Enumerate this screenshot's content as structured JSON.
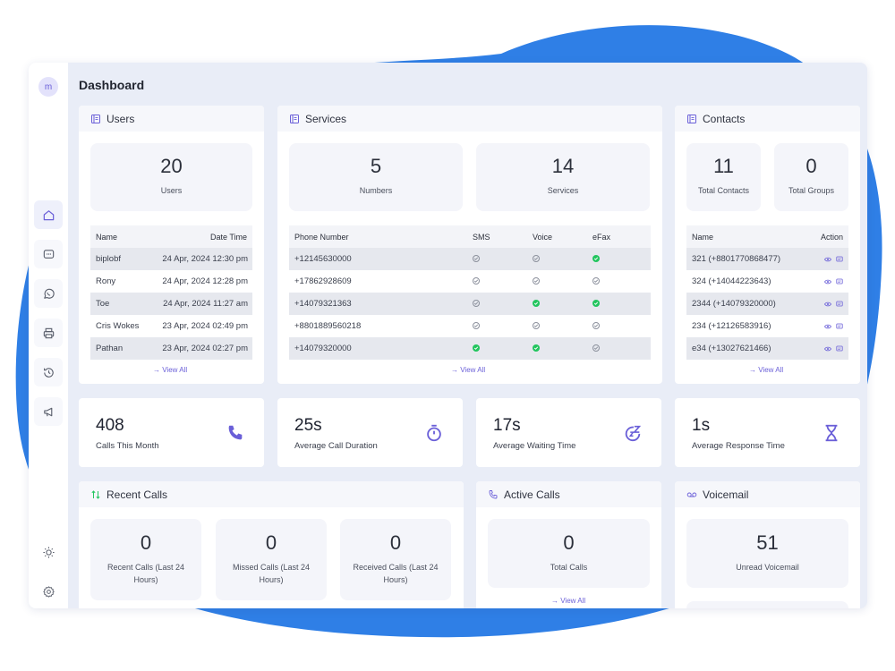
{
  "page_title": "Dashboard",
  "avatar_initial": "m",
  "accent_color": "#6a5fd8",
  "blob_color": "#2f7fe6",
  "sidebar": {
    "icons": [
      "home-icon",
      "chat-icon",
      "whatsapp-icon",
      "fax-printer-icon",
      "history-icon",
      "megaphone-icon"
    ],
    "bottom_icons": [
      "sun-icon",
      "settings-icon"
    ]
  },
  "users": {
    "title": "Users",
    "stat": {
      "value": "20",
      "label": "Users"
    },
    "columns": [
      "Name",
      "Date Time"
    ],
    "rows": [
      {
        "name": "biplobf",
        "date": "24 Apr, 2024 12:30 pm"
      },
      {
        "name": "Rony",
        "date": "24 Apr, 2024 12:28 pm"
      },
      {
        "name": "Toe",
        "date": "24 Apr, 2024 11:27 am"
      },
      {
        "name": "Cris Wokes",
        "date": "23 Apr, 2024 02:49 pm"
      },
      {
        "name": "Pathan",
        "date": "23 Apr, 2024 02:27 pm"
      }
    ],
    "view_all": "→ View All"
  },
  "services": {
    "title": "Services",
    "stats": [
      {
        "value": "5",
        "label": "Numbers"
      },
      {
        "value": "14",
        "label": "Services"
      }
    ],
    "columns": [
      "Phone Number",
      "SMS",
      "Voice",
      "eFax"
    ],
    "rows": [
      {
        "phone": "+12145630000",
        "sms": false,
        "voice": false,
        "efax": true
      },
      {
        "phone": "+17862928609",
        "sms": false,
        "voice": false,
        "efax": false
      },
      {
        "phone": "+14079321363",
        "sms": false,
        "voice": true,
        "efax": true
      },
      {
        "phone": "+8801889560218",
        "sms": false,
        "voice": false,
        "efax": false
      },
      {
        "phone": "+14079320000",
        "sms": true,
        "voice": true,
        "efax": false
      }
    ],
    "view_all": "→ View All"
  },
  "contacts": {
    "title": "Contacts",
    "stats": [
      {
        "value": "11",
        "label": "Total Contacts"
      },
      {
        "value": "0",
        "label": "Total Groups"
      }
    ],
    "columns": [
      "Name",
      "Action"
    ],
    "rows": [
      {
        "name": "321 (+8801770868477)"
      },
      {
        "name": "324 (+14044223643)"
      },
      {
        "name": "2344 (+14079320000)"
      },
      {
        "name": "234 (+12126583916)"
      },
      {
        "name": "e34 (+13027621466)"
      }
    ],
    "view_all": "→ View All"
  },
  "metrics": [
    {
      "value": "408",
      "label": "Calls This Month",
      "icon": "phone-icon"
    },
    {
      "value": "25s",
      "label": "Average Call Duration",
      "icon": "stopwatch-icon"
    },
    {
      "value": "17s",
      "label": "Average Waiting Time",
      "icon": "waiting-icon"
    },
    {
      "value": "1s",
      "label": "Average Response Time",
      "icon": "hourglass-icon"
    }
  ],
  "recent_calls": {
    "title": "Recent Calls",
    "stats": [
      {
        "value": "0",
        "label": "Recent Calls (Last 24 Hours)"
      },
      {
        "value": "0",
        "label": "Missed Calls (Last 24 Hours)"
      },
      {
        "value": "0",
        "label": "Received Calls (Last 24 Hours)"
      }
    ]
  },
  "active_calls": {
    "title": "Active Calls",
    "stat": {
      "value": "0",
      "label": "Total Calls"
    },
    "view_all": "→ View All"
  },
  "voicemail": {
    "title": "Voicemail",
    "stat": {
      "value": "51",
      "label": "Unread Voicemail"
    }
  }
}
